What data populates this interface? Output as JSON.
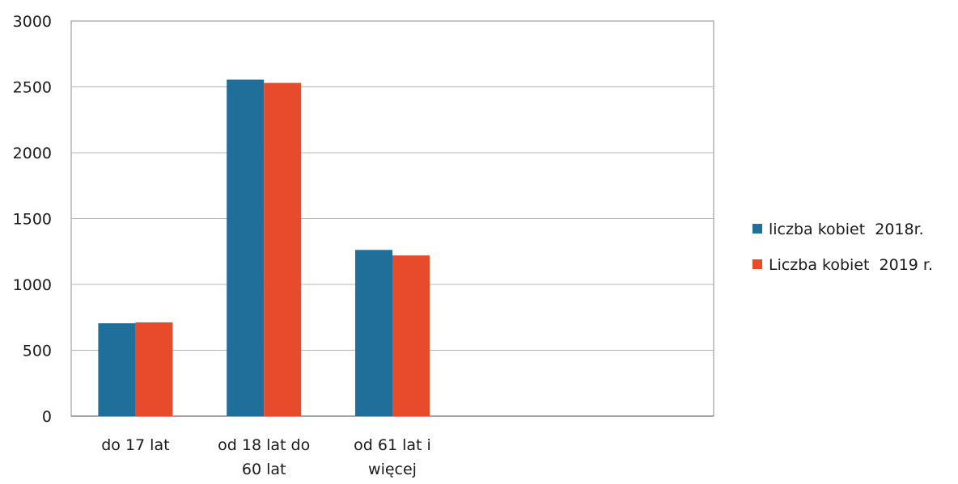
{
  "chart_data": {
    "type": "bar",
    "title": "",
    "xlabel": "",
    "ylabel": "",
    "ylim": [
      0,
      3000
    ],
    "yticks": [
      0,
      500,
      1000,
      1500,
      2000,
      2500,
      3000
    ],
    "ytick_labels": [
      "0",
      "500",
      "1000",
      "1500",
      "2000",
      "2500",
      "3000"
    ],
    "grid": true,
    "legend_position": "right",
    "category_slots": 5,
    "categories": [
      [
        "do 17 lat"
      ],
      [
        "od 18 lat do",
        "60 lat"
      ],
      [
        "od 61 lat i",
        "więcej"
      ]
    ],
    "series": [
      {
        "name": "liczba kobiet  2018r.",
        "color": "#1f6f9a",
        "values": [
          705,
          2555,
          1262
        ]
      },
      {
        "name": "Liczba kobiet  2019 r.",
        "color": "#e84a2c",
        "values": [
          712,
          2530,
          1220
        ]
      }
    ]
  }
}
